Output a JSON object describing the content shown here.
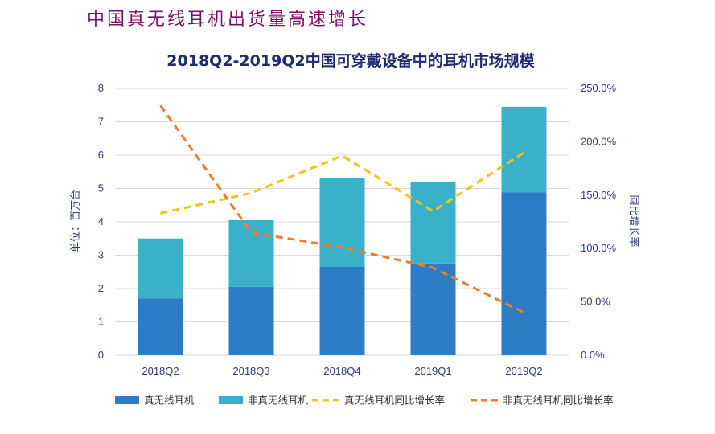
{
  "page": {
    "heading": "中国真无线耳机出货量高速增长"
  },
  "colors": {
    "true_wireless": "#2d7cc6",
    "non_true_wireless": "#3bb0c9",
    "tw_growth_line": "#f0c419",
    "non_tw_growth_line": "#ef7d2c",
    "axis_text": "#2f3a7a",
    "title": "#1f2b6e"
  },
  "chart_data": {
    "type": "bar",
    "stacked": true,
    "title": "2018Q2-2019Q2中国可穿戴设备中的耳机市场规模",
    "categories": [
      "2018Q2",
      "2018Q3",
      "2018Q4",
      "2019Q1",
      "2019Q2"
    ],
    "ylabel": "单位：百万台",
    "y2label": "同比增长率",
    "ylim": [
      0,
      8
    ],
    "yticks": [
      "0",
      "1",
      "2",
      "3",
      "4",
      "5",
      "6",
      "7",
      "8"
    ],
    "y2lim": [
      0,
      250
    ],
    "y2ticks": [
      "0.0%",
      "50.0%",
      "100.0%",
      "150.0%",
      "200.0%",
      "250.0%"
    ],
    "grid": true,
    "legend_position": "bottom",
    "series": [
      {
        "name": "真无线耳机",
        "kind": "bar",
        "axis": "left",
        "values": [
          1.7,
          2.05,
          2.65,
          2.75,
          4.88
        ]
      },
      {
        "name": "非真无线耳机",
        "kind": "bar",
        "axis": "left",
        "values": [
          1.8,
          2.0,
          2.65,
          2.45,
          2.57
        ]
      },
      {
        "name": "真无线耳机同比增长率",
        "kind": "line",
        "style": "dashed",
        "axis": "right",
        "values": [
          133.0,
          152.0,
          187.0,
          135.0,
          190.0
        ]
      },
      {
        "name": "非真无线耳机同比增长率",
        "kind": "line",
        "style": "dashed",
        "axis": "right",
        "values": [
          234.0,
          115.0,
          101.0,
          82.0,
          40.0
        ]
      }
    ]
  }
}
